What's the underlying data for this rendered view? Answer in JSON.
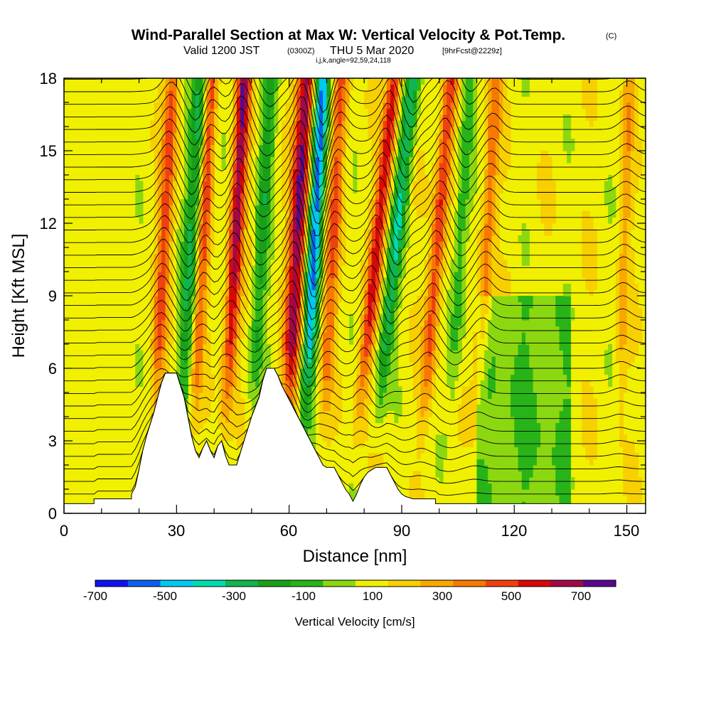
{
  "header": {
    "title": "Wind-Parallel Section at Max W: Vertical Velocity & Pot.Temp.",
    "copyright": "(C)",
    "valid_prefix": "Valid 1200 JST",
    "valid_utc": "(0300Z)",
    "valid_date": "THU 5 Mar 2020",
    "forecast": "[9hrFcst@2229z]",
    "indices": "i,j,k,angle=92,59,24,118"
  },
  "chart_data": {
    "type": "heatmap",
    "xlabel": "Distance [nm]",
    "ylabel": "Height [Kft MSL]",
    "xlim": [
      0,
      155
    ],
    "ylim": [
      0,
      18
    ],
    "x_ticks": [
      "0",
      "30",
      "60",
      "90",
      "120",
      "150"
    ],
    "y_ticks": [
      "0",
      "3",
      "6",
      "9",
      "12",
      "15",
      "18"
    ],
    "colorbar": {
      "title": "Vertical Velocity [cm/s]",
      "labels": [
        "-700",
        "-500",
        "-300",
        "-100",
        "100",
        "300",
        "500",
        "700"
      ],
      "colors": [
        "#1010f0",
        "#0a60f0",
        "#00c8f0",
        "#00dcb0",
        "#10b450",
        "#18a018",
        "#28b418",
        "#8cd810",
        "#f0f000",
        "#f8d000",
        "#f8a800",
        "#f87800",
        "#f04010",
        "#d80808",
        "#a00848",
        "#58088c"
      ]
    },
    "terrain_profile": [
      [
        0,
        0.4
      ],
      [
        8,
        0.4
      ],
      [
        8,
        0.6
      ],
      [
        18,
        0.6
      ],
      [
        18,
        0.8
      ],
      [
        19,
        1.1
      ],
      [
        20,
        1.8
      ],
      [
        21,
        2.6
      ],
      [
        22,
        3.2
      ],
      [
        23,
        3.7
      ],
      [
        24,
        4.2
      ],
      [
        25,
        4.8
      ],
      [
        26,
        5.4
      ],
      [
        27,
        5.8
      ],
      [
        30,
        5.8
      ],
      [
        31,
        5.3
      ],
      [
        32,
        4.8
      ],
      [
        33,
        4.0
      ],
      [
        34,
        3.2
      ],
      [
        35,
        2.6
      ],
      [
        36,
        2.3
      ],
      [
        37,
        2.7
      ],
      [
        38,
        3.0
      ],
      [
        39,
        2.6
      ],
      [
        40,
        2.3
      ],
      [
        41,
        2.8
      ],
      [
        42,
        3.0
      ],
      [
        43,
        2.4
      ],
      [
        44,
        2.0
      ],
      [
        46,
        2.0
      ],
      [
        47,
        2.5
      ],
      [
        48,
        3.0
      ],
      [
        49,
        3.5
      ],
      [
        50,
        4.0
      ],
      [
        51,
        4.4
      ],
      [
        52,
        4.8
      ],
      [
        53,
        5.5
      ],
      [
        54,
        6.0
      ],
      [
        56,
        6.0
      ],
      [
        57,
        5.7
      ],
      [
        58,
        5.3
      ],
      [
        59,
        5.0
      ],
      [
        60,
        4.7
      ],
      [
        61,
        4.4
      ],
      [
        62,
        4.1
      ],
      [
        63,
        3.8
      ],
      [
        64,
        3.5
      ],
      [
        65,
        3.2
      ],
      [
        66,
        2.9
      ],
      [
        67,
        2.6
      ],
      [
        68,
        2.3
      ],
      [
        69,
        2.0
      ],
      [
        70,
        1.9
      ],
      [
        72,
        1.9
      ],
      [
        73,
        1.6
      ],
      [
        74,
        1.3
      ],
      [
        75,
        1.0
      ],
      [
        76,
        0.8
      ],
      [
        77,
        0.5
      ],
      [
        78,
        0.8
      ],
      [
        79,
        1.2
      ],
      [
        80,
        1.5
      ],
      [
        81,
        1.7
      ],
      [
        83,
        1.9
      ],
      [
        86,
        1.9
      ],
      [
        87,
        1.6
      ],
      [
        88,
        1.3
      ],
      [
        89,
        1.0
      ],
      [
        90,
        0.8
      ],
      [
        91,
        0.7
      ],
      [
        93,
        0.6
      ],
      [
        99,
        0.6
      ],
      [
        99,
        0.4
      ],
      [
        155,
        0.4
      ]
    ],
    "updraft_columns": [
      {
        "x0": 41,
        "x1": 43,
        "top_shift": 1,
        "peak": 600
      },
      {
        "x0": 57,
        "x1": 60,
        "top_shift": 1,
        "peak": 650
      },
      {
        "x0": 75,
        "x1": 77,
        "top_shift": 2,
        "peak": 500
      },
      {
        "x0": 22,
        "x1": 24,
        "top_shift": 1,
        "peak": 380
      },
      {
        "x0": 93,
        "x1": 95,
        "top_shift": 1.5,
        "peak": 450
      },
      {
        "x0": 108,
        "x1": 110,
        "top_shift": 1,
        "peak": 300
      },
      {
        "x0": 33,
        "x1": 34,
        "top_shift": 1,
        "peak": 380
      },
      {
        "x0": 67,
        "x1": 69,
        "top_shift": 1,
        "peak": 350
      },
      {
        "x0": 147,
        "x1": 148,
        "top_shift": 0.5,
        "peak": 200
      }
    ],
    "downdraft_columns": [
      {
        "x0": 62,
        "x1": 64,
        "top_shift": 1,
        "peak": -700
      },
      {
        "x0": 29,
        "x1": 31,
        "top_shift": 1,
        "peak": -380
      },
      {
        "x0": 80,
        "x1": 82,
        "top_shift": 2,
        "peak": -450
      },
      {
        "x0": 48,
        "x1": 50,
        "top_shift": 1,
        "peak": -300
      },
      {
        "x0": 101,
        "x1": 103,
        "top_shift": 1,
        "peak": -250
      }
    ]
  }
}
